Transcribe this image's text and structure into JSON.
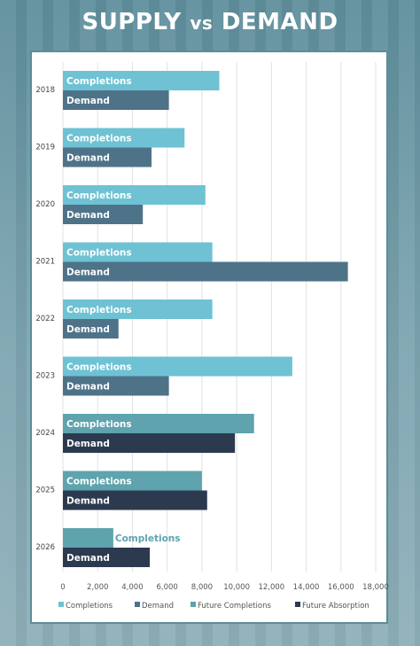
{
  "title": {
    "main": "SUPPLY",
    "vs": "vs",
    "end": "DEMAND"
  },
  "chart_data": {
    "type": "bar",
    "orientation": "horizontal",
    "title": "SUPPLY vs DEMAND",
    "categories": [
      "2018",
      "2019",
      "2020",
      "2021",
      "2022",
      "2023",
      "2024",
      "2025",
      "2026"
    ],
    "xlim": [
      0,
      18000
    ],
    "xticks": [
      "0",
      "2,000",
      "4,000",
      "6,000",
      "8,000",
      "10,000",
      "12,000",
      "14,000",
      "16,000",
      "18,000"
    ],
    "grid": "vertical",
    "legend_position": "bottom",
    "bar_labels": {
      "supply": "Completions",
      "demand": "Demand"
    },
    "series": [
      {
        "name": "Completions",
        "color": "#6ec2d3",
        "values": [
          9000,
          7000,
          8200,
          8600,
          8600,
          13200,
          null,
          null,
          null
        ]
      },
      {
        "name": "Demand",
        "color": "#4e7389",
        "values": [
          6100,
          5100,
          4600,
          16400,
          3200,
          6100,
          null,
          null,
          null
        ]
      },
      {
        "name": "Future Completions",
        "color": "#5ea3ad",
        "values": [
          null,
          null,
          null,
          null,
          null,
          null,
          11000,
          8000,
          2900
        ]
      },
      {
        "name": "Future Absorption",
        "color": "#2c3a4f",
        "values": [
          null,
          null,
          null,
          null,
          null,
          null,
          9900,
          8300,
          5000
        ]
      }
    ]
  }
}
